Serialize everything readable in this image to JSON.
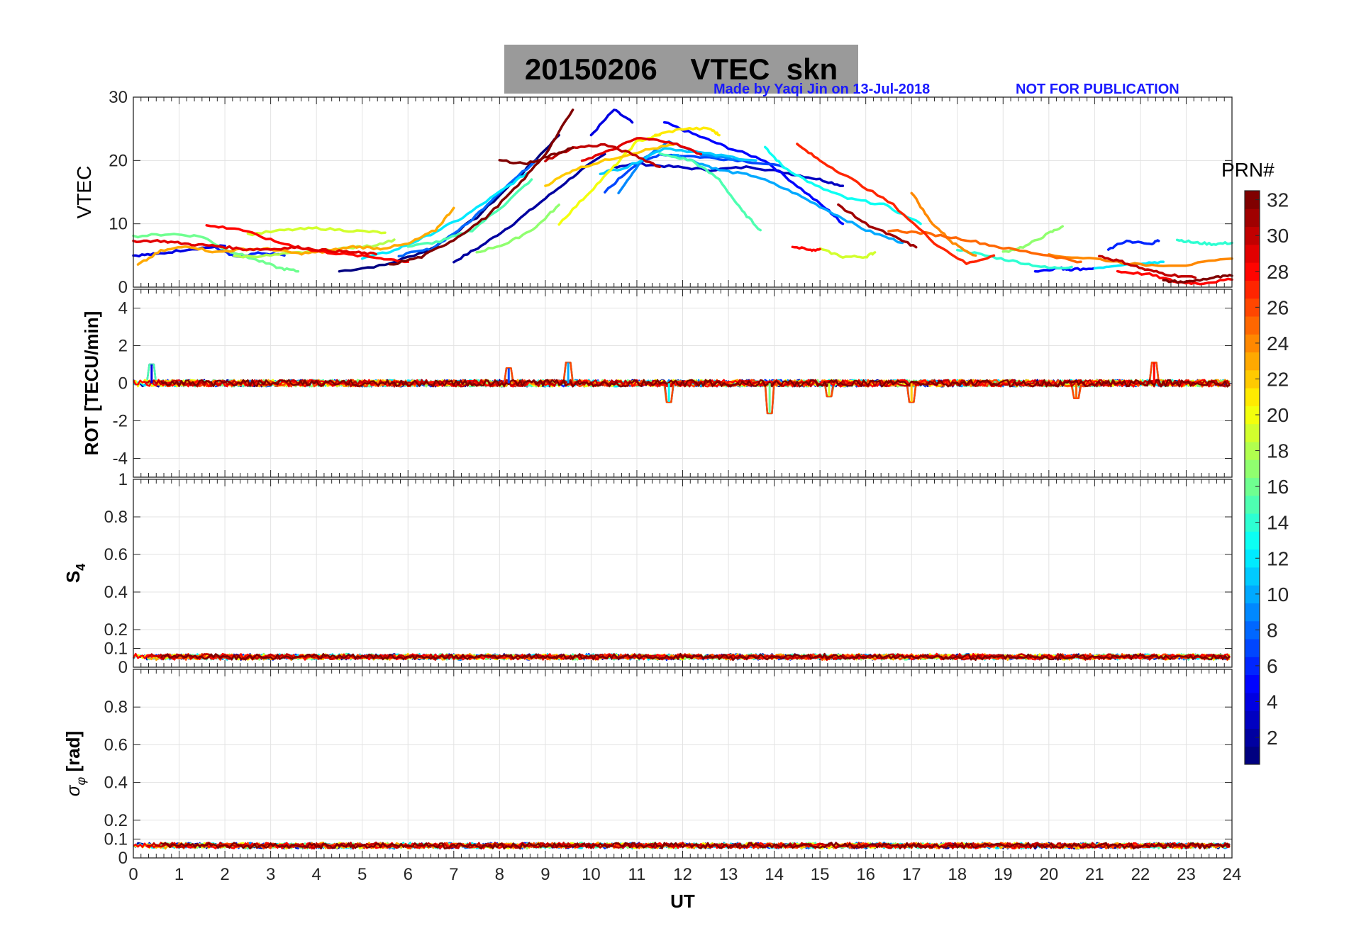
{
  "title": "20150206    VTEC  skn",
  "credit_left": "Made by Yaqi Jin on 13-Jul-2018",
  "credit_right": "NOT FOR PUBLICATION",
  "colors": {
    "credit": "#1a1aff",
    "title_box": "#9a9a9a"
  },
  "colorbar": {
    "label": "PRN#",
    "range": [
      1,
      32
    ],
    "ticks": [
      "2",
      "4",
      "6",
      "8",
      "10",
      "12",
      "14",
      "16",
      "18",
      "20",
      "22",
      "24",
      "26",
      "28",
      "30",
      "32"
    ],
    "colormap": "jet"
  },
  "chart_data": [
    {
      "type": "line",
      "panel": "vtec",
      "ylabel": "VTEC",
      "xlim": [
        0,
        24
      ],
      "ylim": [
        0,
        30
      ],
      "yticks": [
        "0",
        "10",
        "20",
        "30"
      ],
      "grid": true,
      "series": [
        {
          "prn": 1,
          "x": [
            4.5,
            5.5,
            6.5,
            7.5,
            8.5,
            9.3
          ],
          "y": [
            2.5,
            3.5,
            6,
            11,
            18,
            24
          ]
        },
        {
          "prn": 2,
          "x": [
            7.0,
            7.6,
            8.3,
            9.0,
            9.7,
            10.3
          ],
          "y": [
            4,
            6.5,
            10,
            14,
            18,
            21
          ]
        },
        {
          "prn": 3,
          "x": [
            10.5,
            11.0,
            11.8,
            12.6,
            13.5,
            14.3,
            15.0,
            15.5
          ],
          "y": [
            19,
            19.5,
            19,
            18.5,
            19,
            18,
            17,
            16
          ]
        },
        {
          "prn": 4,
          "x": [
            0.0,
            0.5,
            1.2,
            2.0
          ],
          "y": [
            5,
            5.2,
            6,
            6.5
          ]
        },
        {
          "prn": 4,
          "x": [
            10.0,
            10.5,
            10.9
          ],
          "y": [
            24,
            28,
            26
          ]
        },
        {
          "prn": 5,
          "x": [
            11.6,
            12.3,
            13.0,
            13.8,
            14.5,
            15.2,
            15.5
          ],
          "y": [
            26,
            24,
            22,
            20,
            16,
            12,
            10
          ]
        },
        {
          "prn": 5,
          "x": [
            19.7,
            20.2,
            20.5,
            21.0
          ],
          "y": [
            2.5,
            3,
            2.8,
            3
          ]
        },
        {
          "prn": 6,
          "x": [
            1.8,
            2.2,
            2.8,
            3.3
          ],
          "y": [
            6.2,
            4.8,
            5.4,
            5.0
          ]
        },
        {
          "prn": 6,
          "x": [
            21.3,
            21.7,
            22.2,
            22.4
          ],
          "y": [
            6,
            7.3,
            6.8,
            7.3
          ]
        },
        {
          "prn": 7,
          "x": [
            10.3,
            10.9,
            11.5,
            12.5,
            13.3,
            14.2
          ],
          "y": [
            15,
            19,
            21,
            20.5,
            20,
            19
          ]
        },
        {
          "prn": 8,
          "x": [
            5.8,
            6.5,
            7.3,
            8.0,
            8.8
          ],
          "y": [
            5,
            6,
            10,
            15,
            20
          ]
        },
        {
          "prn": 9,
          "x": [
            10.6,
            11.1,
            11.7,
            12.4,
            13.3
          ],
          "y": [
            15,
            20,
            23,
            21,
            20
          ]
        },
        {
          "prn": 10,
          "x": [
            11.8,
            12.2,
            12.8,
            13.6,
            14.4,
            15.2,
            16.0,
            16.8
          ],
          "y": [
            21,
            20,
            18.5,
            17.5,
            15,
            12,
            9,
            7
          ]
        },
        {
          "prn": 11,
          "x": [
            10.2,
            10.8,
            11.6,
            12.6,
            13.6
          ],
          "y": [
            18,
            19,
            22,
            21,
            20
          ]
        },
        {
          "prn": 12,
          "x": [
            5.0,
            5.7,
            6.4,
            7.2,
            8.0,
            8.6
          ],
          "y": [
            4.5,
            5.8,
            8,
            11,
            15,
            18
          ]
        },
        {
          "prn": 12,
          "x": [
            21.0,
            21.5,
            22.0,
            22.5
          ],
          "y": [
            3,
            3.5,
            3.8,
            4
          ]
        },
        {
          "prn": 13,
          "x": [
            13.8,
            14.2,
            14.9,
            15.6,
            16.4,
            17.2
          ],
          "y": [
            22,
            19,
            16,
            14,
            13,
            10
          ]
        },
        {
          "prn": 14,
          "x": [
            18.0,
            18.6,
            19.3,
            20.0,
            20.5
          ],
          "y": [
            6,
            5,
            4,
            3,
            3.2
          ]
        },
        {
          "prn": 14,
          "x": [
            22.8,
            23.2,
            23.6,
            24.0
          ],
          "y": [
            7.5,
            7,
            6.8,
            7
          ]
        },
        {
          "prn": 15,
          "x": [
            6.0,
            6.7,
            7.4,
            8.1,
            8.7
          ],
          "y": [
            6.4,
            7.2,
            9,
            13,
            17
          ]
        },
        {
          "prn": 15,
          "x": [
            11.5,
            12.2,
            12.8,
            13.3,
            13.7
          ],
          "y": [
            21,
            20,
            17,
            12,
            9
          ]
        },
        {
          "prn": 16,
          "x": [
            0.0,
            0.8,
            1.5,
            2.0,
            2.6,
            3.2,
            3.6
          ],
          "y": [
            8,
            8.4,
            8,
            6,
            4.5,
            3,
            2.5
          ]
        },
        {
          "prn": 17,
          "x": [
            7.5,
            8.2,
            8.8,
            9.3
          ],
          "y": [
            5.5,
            7,
            9.5,
            13
          ]
        },
        {
          "prn": 17,
          "x": [
            19.0,
            19.5,
            20.0,
            20.3
          ],
          "y": [
            5.5,
            6.5,
            8.5,
            9.6
          ]
        },
        {
          "prn": 18,
          "x": [
            2.2,
            3.0,
            3.7,
            4.4,
            5.2,
            5.7
          ],
          "y": [
            4.8,
            5,
            5.5,
            6,
            6.5,
            7.5
          ]
        },
        {
          "prn": 19,
          "x": [
            2.5,
            3.3,
            4.0,
            4.8,
            5.5
          ],
          "y": [
            8.3,
            9,
            9.3,
            8.9,
            8.6
          ]
        },
        {
          "prn": 19,
          "x": [
            15.0,
            15.5,
            16.0,
            16.2
          ],
          "y": [
            6,
            4.8,
            4.8,
            5.5
          ]
        },
        {
          "prn": 20,
          "x": [
            9.3,
            9.9,
            10.5,
            11.0,
            11.5
          ],
          "y": [
            10,
            14.5,
            19,
            23,
            24
          ]
        },
        {
          "prn": 21,
          "x": [
            11.4,
            12.0,
            12.6,
            12.8
          ],
          "y": [
            24,
            25,
            25,
            24
          ]
        },
        {
          "prn": 22,
          "x": [
            9.0,
            9.6,
            10.3,
            11.1,
            11.8
          ],
          "y": [
            16,
            18.5,
            20,
            21.5,
            22.5
          ]
        },
        {
          "prn": 23,
          "x": [
            0.1,
            0.6,
            1.2,
            1.8,
            2.4,
            3.0,
            3.6,
            4.2,
            4.8,
            5.4,
            6.0,
            6.6,
            7.0
          ],
          "y": [
            3.5,
            5.7,
            6.5,
            5.5,
            6,
            6,
            5.3,
            5.6,
            6.4,
            6.1,
            6.8,
            9,
            12.5
          ]
        },
        {
          "prn": 24,
          "x": [
            17.0,
            17.4,
            17.9,
            18.4
          ],
          "y": [
            15,
            10.5,
            7,
            5
          ]
        },
        {
          "prn": 24,
          "x": [
            20.0,
            21.0,
            22.0,
            23.0,
            24.0
          ],
          "y": [
            5,
            4.5,
            3.5,
            3.5,
            4.5
          ]
        },
        {
          "prn": 25,
          "x": [
            16.5,
            17.3,
            18.2,
            19.0,
            20.0,
            20.7
          ],
          "y": [
            9,
            8.5,
            7.5,
            6.2,
            5,
            4
          ]
        },
        {
          "prn": 27,
          "x": [
            14.5,
            15.0,
            15.7,
            16.6,
            17.5,
            18.2,
            18.8
          ],
          "y": [
            22.5,
            20,
            17,
            13,
            7,
            3.7,
            5
          ]
        },
        {
          "prn": 28,
          "x": [
            1.6,
            2.3,
            3.1,
            3.9,
            4.6,
            5.4,
            6.0
          ],
          "y": [
            9.7,
            9.2,
            7.2,
            5.8,
            5.2,
            4.6,
            4
          ]
        },
        {
          "prn": 28,
          "x": [
            14.4,
            14.8,
            15.0
          ],
          "y": [
            6.4,
            5.8,
            6
          ]
        },
        {
          "prn": 28,
          "x": [
            21.5,
            22.2,
            22.8,
            23.3,
            24.0
          ],
          "y": [
            2.5,
            2,
            0.8,
            0.6,
            1.2
          ]
        },
        {
          "prn": 29,
          "x": [
            0.0,
            0.6,
            1.2,
            1.8,
            2.4,
            3.0,
            3.6,
            4.2,
            4.8,
            5.3
          ],
          "y": [
            7.3,
            7.3,
            6.8,
            6.5,
            6,
            6,
            6.3,
            5.8,
            5.5,
            5.2
          ]
        },
        {
          "prn": 29,
          "x": [
            9.8,
            10.4,
            11.0,
            11.7,
            12.4
          ],
          "y": [
            20,
            21.5,
            23.5,
            23,
            21
          ]
        },
        {
          "prn": 30,
          "x": [
            9.0,
            9.6,
            10.3,
            10.9,
            11.5
          ],
          "y": [
            20,
            22,
            22.5,
            21,
            19
          ]
        },
        {
          "prn": 30,
          "x": [
            21.1,
            21.6,
            22.1,
            22.6,
            23.2
          ],
          "y": [
            4.9,
            4,
            2.8,
            2,
            1.5
          ]
        },
        {
          "prn": 31,
          "x": [
            15.4,
            16.0,
            16.6,
            17.1
          ],
          "y": [
            13,
            10,
            8,
            6.3
          ]
        },
        {
          "prn": 32,
          "x": [
            5.6,
            6.3,
            7.0,
            7.7,
            8.4,
            9.0,
            9.6
          ],
          "y": [
            3.5,
            4.8,
            7.5,
            11,
            16,
            21,
            28
          ]
        },
        {
          "prn": 32,
          "x": [
            8.0,
            8.6,
            9.2,
            9.6
          ],
          "y": [
            20,
            19.5,
            21,
            22
          ]
        },
        {
          "prn": 32,
          "x": [
            22.5,
            23.0,
            23.6,
            24.0
          ],
          "y": [
            1,
            0.8,
            1.5,
            1.8
          ]
        }
      ]
    },
    {
      "type": "line",
      "panel": "rot",
      "ylabel": "ROT [TECU/min]",
      "xlim": [
        0,
        24
      ],
      "ylim": [
        -5,
        5
      ],
      "yticks": [
        "-4",
        "-2",
        "0",
        "2",
        "4"
      ],
      "grid": true,
      "baseline": 0,
      "spikes": [
        {
          "x": 0.4,
          "y": 1.0
        },
        {
          "x": 8.2,
          "y": 0.8
        },
        {
          "x": 9.5,
          "y": 1.1
        },
        {
          "x": 11.7,
          "y": -1.0
        },
        {
          "x": 13.9,
          "y": -1.6
        },
        {
          "x": 15.2,
          "y": -0.7
        },
        {
          "x": 17.0,
          "y": -1.0
        },
        {
          "x": 20.6,
          "y": -0.8
        },
        {
          "x": 22.3,
          "y": 1.1
        }
      ]
    },
    {
      "type": "line",
      "panel": "s4",
      "ylabel": "S4",
      "xlim": [
        0,
        24
      ],
      "ylim": [
        0,
        1
      ],
      "yticks": [
        "0",
        "0.1",
        "0.2",
        "0.4",
        "0.6",
        "0.8",
        "1"
      ],
      "grid": true,
      "baseline": 0.05
    },
    {
      "type": "line",
      "panel": "sigma_phi",
      "ylabel": "σ_φ [rad]",
      "xlabel": "UT",
      "xlim": [
        0,
        24
      ],
      "ylim": [
        0,
        1
      ],
      "xticks": [
        "0",
        "1",
        "2",
        "3",
        "4",
        "5",
        "6",
        "7",
        "8",
        "9",
        "10",
        "11",
        "12",
        "13",
        "14",
        "15",
        "16",
        "17",
        "18",
        "19",
        "20",
        "21",
        "22",
        "23",
        "24"
      ],
      "yticks": [
        "0",
        "0.1",
        "0.2",
        "0.4",
        "0.6",
        "0.8"
      ],
      "grid": true,
      "baseline": 0.06
    }
  ]
}
